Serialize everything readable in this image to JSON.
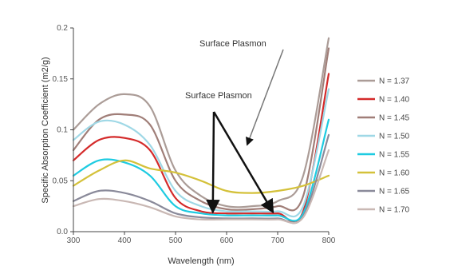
{
  "chart_data": {
    "type": "line",
    "title": "",
    "xlabel": "Wavelength (nm)",
    "ylabel": "Specific Absorption Coefficient (m2/g)",
    "xlim": [
      300,
      800
    ],
    "ylim": [
      0,
      0.2
    ],
    "x_ticks": [
      "300",
      "400",
      "500",
      "600",
      "700",
      "800"
    ],
    "y_ticks": [
      "0.0",
      "0.05",
      "0.1",
      "0.15",
      "0.2"
    ],
    "grid": false,
    "legend_position": "right",
    "annotations": [
      {
        "text": "Surface Plasmon",
        "points_to": [
          {
            "x": 640,
            "y": 0.085
          }
        ]
      },
      {
        "text": "Surface Plasmon",
        "points_to": [
          {
            "x": 573,
            "y": 0.019
          },
          {
            "x": 691,
            "y": 0.019
          }
        ]
      }
    ],
    "x": [
      300,
      350,
      400,
      450,
      500,
      550,
      600,
      650,
      700,
      750,
      800
    ],
    "series": [
      {
        "name": "N = 1.37",
        "color": "#ab9c97",
        "values": [
          0.1,
          0.125,
          0.135,
          0.123,
          0.06,
          0.035,
          0.025,
          0.025,
          0.03,
          0.055,
          0.19
        ]
      },
      {
        "name": "N = 1.40",
        "color": "#d42a2a",
        "values": [
          0.07,
          0.09,
          0.092,
          0.08,
          0.033,
          0.02,
          0.018,
          0.018,
          0.018,
          0.02,
          0.155
        ]
      },
      {
        "name": "N = 1.45",
        "color": "#a07e78",
        "values": [
          0.08,
          0.11,
          0.115,
          0.105,
          0.05,
          0.03,
          0.022,
          0.022,
          0.025,
          0.035,
          0.18
        ]
      },
      {
        "name": "N = 1.50",
        "color": "#9fd8e6",
        "values": [
          0.09,
          0.108,
          0.105,
          0.085,
          0.04,
          0.025,
          0.02,
          0.02,
          0.02,
          0.025,
          0.14
        ]
      },
      {
        "name": "N = 1.55",
        "color": "#1ecbe1",
        "values": [
          0.055,
          0.07,
          0.068,
          0.055,
          0.025,
          0.018,
          0.016,
          0.016,
          0.016,
          0.018,
          0.11
        ]
      },
      {
        "name": "N = 1.60",
        "color": "#d4c13a",
        "values": [
          0.045,
          0.06,
          0.07,
          0.062,
          0.058,
          0.05,
          0.04,
          0.038,
          0.04,
          0.045,
          0.055
        ]
      },
      {
        "name": "N = 1.65",
        "color": "#8a8a9a",
        "values": [
          0.03,
          0.04,
          0.038,
          0.03,
          0.018,
          0.014,
          0.013,
          0.013,
          0.013,
          0.015,
          0.095
        ]
      },
      {
        "name": "N = 1.70",
        "color": "#c9b8b4",
        "values": [
          0.025,
          0.032,
          0.03,
          0.024,
          0.015,
          0.012,
          0.012,
          0.012,
          0.012,
          0.014,
          0.08
        ]
      }
    ]
  }
}
